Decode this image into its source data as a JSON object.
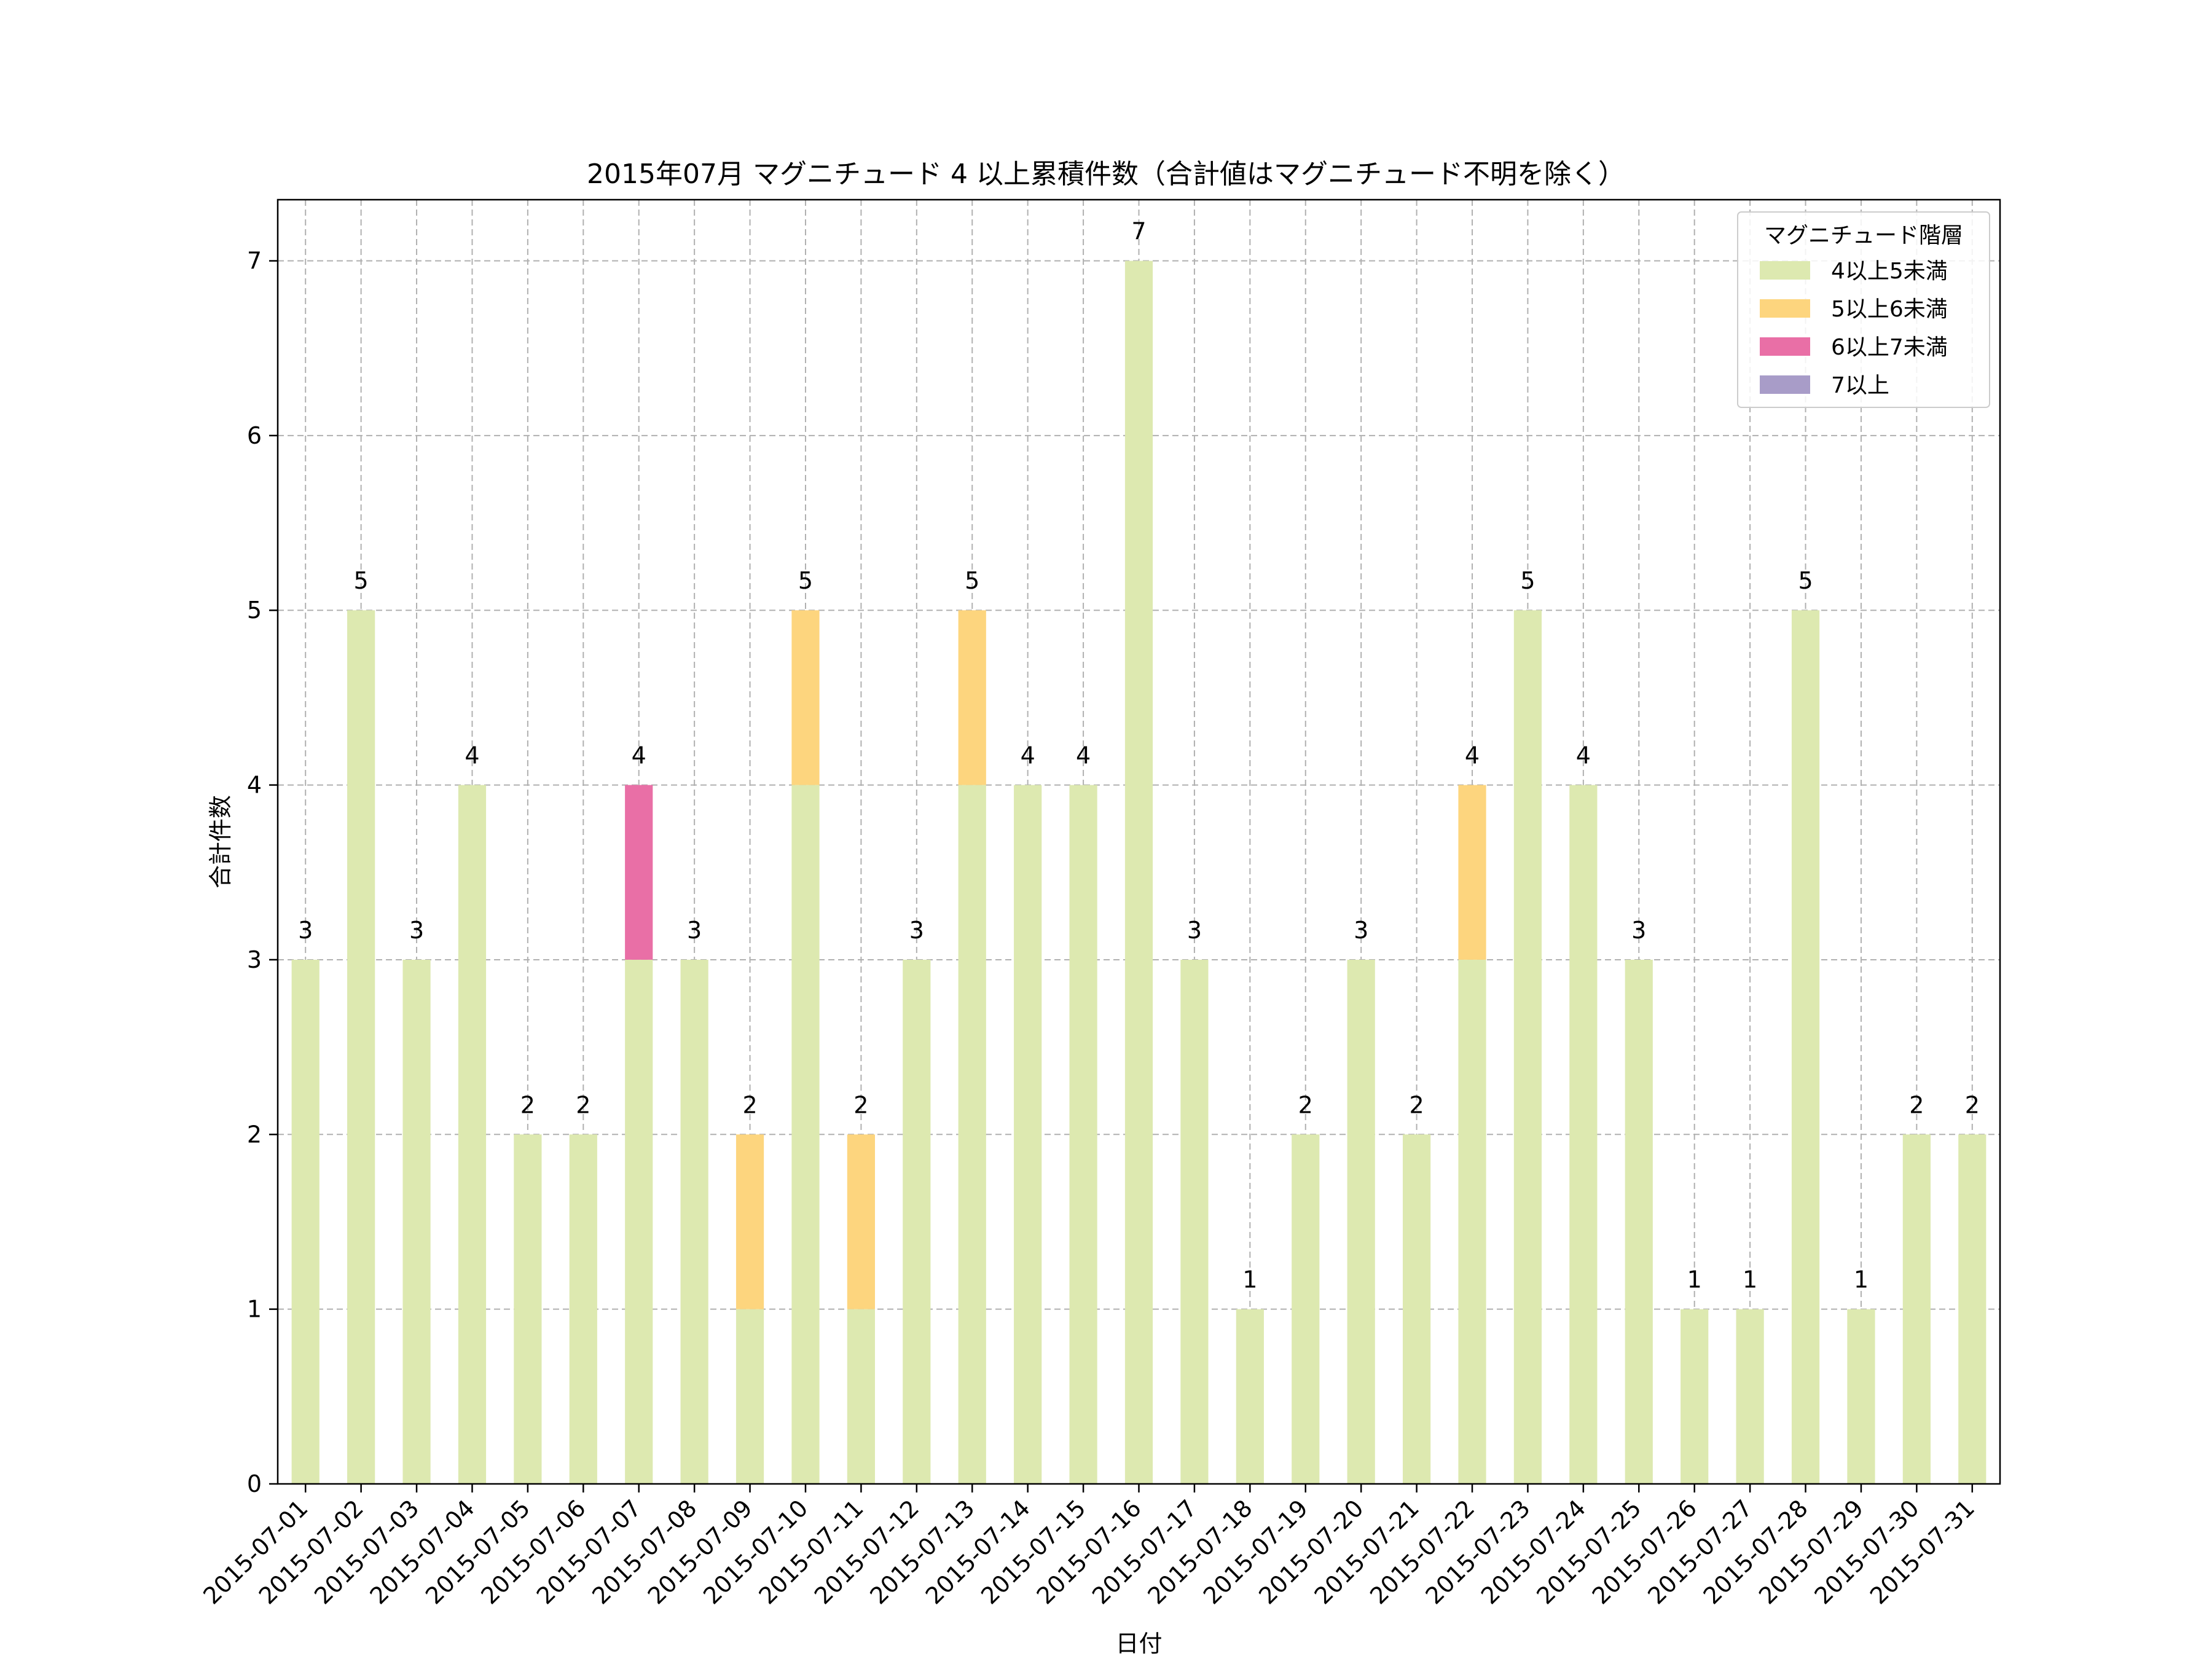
{
  "chart_data": {
    "type": "bar",
    "stacked": true,
    "title": "2015年07月 マグニチュード 4 以上累積件数（合計値はマグニチュード不明を除く）",
    "xlabel": "日付",
    "ylabel": "合計件数",
    "ylim": [
      0,
      7.35
    ],
    "yticks": [
      0,
      1,
      2,
      3,
      4,
      5,
      6,
      7
    ],
    "grid": true,
    "legend_title": "マグニチュード階層",
    "legend_position": "top-right",
    "categories": [
      "2015-07-01",
      "2015-07-02",
      "2015-07-03",
      "2015-07-04",
      "2015-07-05",
      "2015-07-06",
      "2015-07-07",
      "2015-07-08",
      "2015-07-09",
      "2015-07-10",
      "2015-07-11",
      "2015-07-12",
      "2015-07-13",
      "2015-07-14",
      "2015-07-15",
      "2015-07-16",
      "2015-07-17",
      "2015-07-18",
      "2015-07-19",
      "2015-07-20",
      "2015-07-21",
      "2015-07-22",
      "2015-07-23",
      "2015-07-24",
      "2015-07-25",
      "2015-07-26",
      "2015-07-27",
      "2015-07-28",
      "2015-07-29",
      "2015-07-30",
      "2015-07-31"
    ],
    "series": [
      {
        "name": "4以上5未満",
        "color": "#dde9b0",
        "values": [
          3,
          5,
          3,
          4,
          2,
          2,
          3,
          3,
          1,
          4,
          1,
          3,
          4,
          4,
          4,
          7,
          3,
          1,
          2,
          3,
          2,
          3,
          5,
          4,
          3,
          1,
          1,
          5,
          1,
          2,
          2
        ]
      },
      {
        "name": "5以上6未満",
        "color": "#fdd57e",
        "values": [
          0,
          0,
          0,
          0,
          0,
          0,
          0,
          0,
          1,
          1,
          1,
          0,
          1,
          0,
          0,
          0,
          0,
          0,
          0,
          0,
          0,
          1,
          0,
          0,
          0,
          0,
          0,
          0,
          0,
          0,
          0
        ]
      },
      {
        "name": "6以上7未満",
        "color": "#e96fa6",
        "values": [
          0,
          0,
          0,
          0,
          0,
          0,
          1,
          0,
          0,
          0,
          0,
          0,
          0,
          0,
          0,
          0,
          0,
          0,
          0,
          0,
          0,
          0,
          0,
          0,
          0,
          0,
          0,
          0,
          0,
          0,
          0
        ]
      },
      {
        "name": "7以上",
        "color": "#a89cc8",
        "values": [
          0,
          0,
          0,
          0,
          0,
          0,
          0,
          0,
          0,
          0,
          0,
          0,
          0,
          0,
          0,
          0,
          0,
          0,
          0,
          0,
          0,
          0,
          0,
          0,
          0,
          0,
          0,
          0,
          0,
          0,
          0
        ]
      }
    ],
    "totals": [
      3,
      5,
      3,
      4,
      2,
      2,
      4,
      3,
      2,
      5,
      2,
      3,
      5,
      4,
      4,
      7,
      3,
      1,
      2,
      3,
      2,
      4,
      5,
      4,
      3,
      1,
      1,
      5,
      1,
      2,
      2
    ]
  }
}
